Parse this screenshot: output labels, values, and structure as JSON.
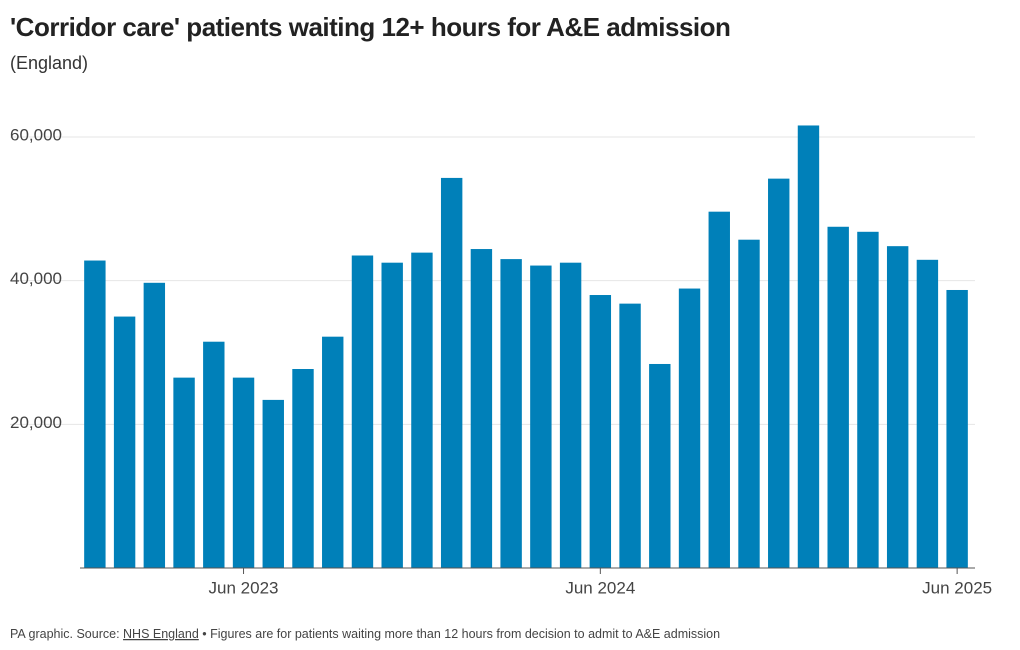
{
  "chart_data": {
    "type": "bar",
    "title": "'Corridor care' patients waiting 12+ hours for A&E admission",
    "subtitle": "(England)",
    "categories": [
      null,
      null,
      null,
      null,
      null,
      "Jun 2023",
      null,
      null,
      null,
      null,
      null,
      null,
      null,
      null,
      null,
      null,
      null,
      "Jun 2024",
      null,
      null,
      null,
      null,
      null,
      null,
      null,
      null,
      null,
      null,
      null,
      "Jun 2025"
    ],
    "values": [
      42800,
      35000,
      39700,
      26500,
      31500,
      26500,
      23400,
      27700,
      32200,
      43500,
      42500,
      43900,
      54300,
      44400,
      43000,
      42100,
      42500,
      38000,
      36800,
      28400,
      38900,
      49600,
      45700,
      54200,
      61600,
      47500,
      46800,
      44800,
      42900,
      38700
    ],
    "color": "#0080b9",
    "ylim": [
      0,
      62000
    ],
    "yticks": [
      {
        "value": 20000,
        "label": "20,000"
      },
      {
        "value": 40000,
        "label": "40,000"
      },
      {
        "value": 60000,
        "label": "60,000"
      }
    ],
    "grid": true,
    "source": {
      "prefix": "PA graphic. Source: ",
      "link": "NHS England",
      "note": " • Figures are for patients waiting more than 12 hours from decision to admit to A&E admission"
    }
  }
}
